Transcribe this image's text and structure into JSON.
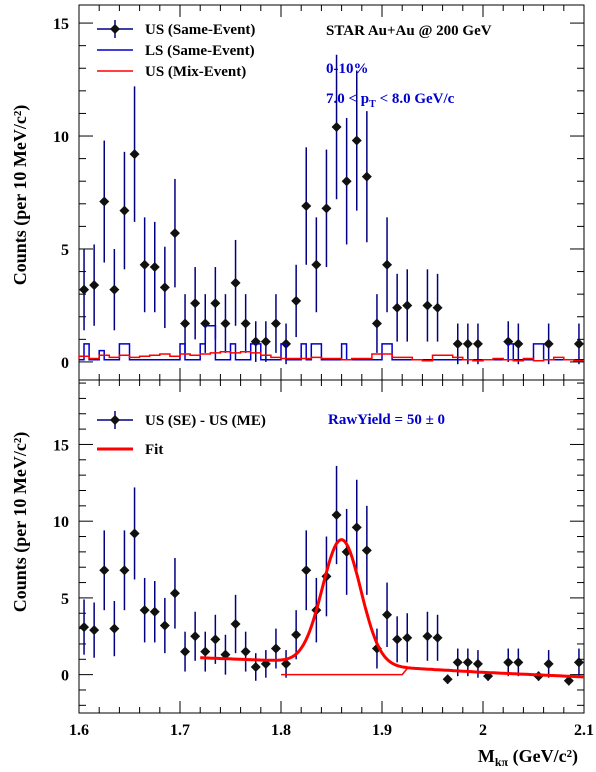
{
  "chart_data": [
    {
      "type": "scatter",
      "panel": "top",
      "ylabel": "Counts (per 10 MeV/c²)",
      "xlim": [
        1.6,
        2.1
      ],
      "ylim": [
        -0.8,
        15.8
      ],
      "yticks": [
        "0",
        "5",
        "10",
        "15"
      ],
      "annotations": {
        "system": "STAR Au+Au @ 200 GeV",
        "centrality": "0-10%",
        "pt": "7.0 < p",
        "pt_sub": "T",
        "pt_end": " < 8.0 GeV/c"
      },
      "legend": [
        {
          "label": "US (Same-Event)",
          "color": "#000080",
          "marker": "point"
        },
        {
          "label": "LS (Same-Event)",
          "color": "#0000cc",
          "marker": "line"
        },
        {
          "label": "US (Mix-Event)",
          "color": "#ff0000",
          "marker": "line"
        }
      ],
      "series": [
        {
          "name": "US (Same-Event)",
          "color": "#000080",
          "points": [
            [
              1.605,
              3.2,
              1.8
            ],
            [
              1.615,
              3.4,
              1.8
            ],
            [
              1.625,
              7.1,
              2.7
            ],
            [
              1.635,
              3.2,
              1.8
            ],
            [
              1.645,
              6.7,
              2.6
            ],
            [
              1.655,
              9.2,
              3.0
            ],
            [
              1.665,
              4.3,
              2.1
            ],
            [
              1.675,
              4.2,
              2.0
            ],
            [
              1.685,
              3.3,
              1.8
            ],
            [
              1.695,
              5.7,
              2.4
            ],
            [
              1.705,
              1.7,
              1.3
            ],
            [
              1.715,
              2.6,
              1.6
            ],
            [
              1.725,
              1.7,
              1.3
            ],
            [
              1.735,
              2.6,
              1.6
            ],
            [
              1.745,
              1.7,
              1.3
            ],
            [
              1.755,
              3.5,
              1.9
            ],
            [
              1.765,
              1.7,
              1.3
            ],
            [
              1.775,
              0.9,
              0.9
            ],
            [
              1.785,
              0.9,
              0.9
            ],
            [
              1.795,
              1.7,
              1.3
            ],
            [
              1.805,
              0.8,
              0.9
            ],
            [
              1.815,
              2.7,
              1.6
            ],
            [
              1.825,
              6.9,
              2.6
            ],
            [
              1.835,
              4.3,
              2.1
            ],
            [
              1.845,
              6.8,
              2.6
            ],
            [
              1.855,
              10.4,
              3.2
            ],
            [
              1.865,
              8.0,
              2.8
            ],
            [
              1.875,
              9.8,
              3.1
            ],
            [
              1.885,
              8.2,
              2.9
            ],
            [
              1.895,
              1.7,
              1.3
            ],
            [
              1.905,
              4.3,
              2.1
            ],
            [
              1.915,
              2.4,
              1.5
            ],
            [
              1.925,
              2.5,
              1.6
            ],
            [
              1.945,
              2.5,
              1.6
            ],
            [
              1.955,
              2.4,
              1.5
            ],
            [
              1.975,
              0.8,
              0.9
            ],
            [
              1.985,
              0.8,
              0.9
            ],
            [
              1.995,
              0.8,
              0.9
            ],
            [
              2.025,
              0.9,
              0.9
            ],
            [
              2.035,
              0.8,
              0.9
            ],
            [
              2.065,
              0.8,
              0.9
            ],
            [
              2.095,
              0.8,
              0.9
            ]
          ]
        },
        {
          "name": "LS (Same-Event)",
          "color": "#0000cc",
          "step_bins": [
            [
              1.6,
              1.605,
              0.1
            ],
            [
              1.605,
              1.61,
              0.8
            ],
            [
              1.61,
              1.62,
              0.1
            ],
            [
              1.62,
              1.625,
              0.5
            ],
            [
              1.625,
              1.64,
              0.1
            ],
            [
              1.64,
              1.645,
              0.8
            ],
            [
              1.645,
              1.65,
              0.8
            ],
            [
              1.65,
              1.7,
              0.1
            ],
            [
              1.7,
              1.705,
              0.8
            ],
            [
              1.705,
              1.71,
              0.1
            ],
            [
              1.71,
              1.72,
              0.1
            ],
            [
              1.72,
              1.725,
              0.8
            ],
            [
              1.725,
              1.73,
              1.6
            ],
            [
              1.73,
              1.735,
              1.6
            ],
            [
              1.735,
              1.75,
              0.1
            ],
            [
              1.75,
              1.755,
              0.8
            ],
            [
              1.755,
              1.77,
              0.1
            ],
            [
              1.77,
              1.775,
              0.8
            ],
            [
              1.775,
              1.78,
              0.8
            ],
            [
              1.78,
              1.8,
              0.1
            ],
            [
              1.8,
              1.805,
              0.8
            ],
            [
              1.805,
              1.82,
              0.1
            ],
            [
              1.82,
              1.825,
              0.8
            ],
            [
              1.825,
              1.83,
              0.1
            ],
            [
              1.83,
              1.835,
              0.8
            ],
            [
              1.835,
              1.84,
              0.8
            ],
            [
              1.84,
              1.86,
              0.1
            ],
            [
              1.86,
              1.865,
              0.8
            ],
            [
              1.865,
              1.9,
              0.1
            ],
            [
              1.9,
              1.905,
              0.8
            ],
            [
              1.905,
              1.91,
              0.8
            ],
            [
              1.91,
              2.025,
              0.1
            ],
            [
              2.025,
              2.03,
              0.8
            ],
            [
              2.03,
              2.05,
              0.1
            ],
            [
              2.05,
              2.055,
              0.8
            ],
            [
              2.055,
              2.06,
              0.8
            ],
            [
              2.06,
              2.1,
              0.1
            ]
          ]
        },
        {
          "name": "US (Mix-Event)",
          "color": "#ff0000",
          "step_bins": [
            [
              1.6,
              1.6,
              0.15
            ],
            [
              1.6,
              1.61,
              0.25
            ],
            [
              1.61,
              1.62,
              0.15
            ],
            [
              1.62,
              1.63,
              0.3
            ],
            [
              1.63,
              1.64,
              0.2
            ],
            [
              1.64,
              1.65,
              0.3
            ],
            [
              1.65,
              1.66,
              0.2
            ],
            [
              1.66,
              1.67,
              0.25
            ],
            [
              1.67,
              1.68,
              0.3
            ],
            [
              1.68,
              1.69,
              0.35
            ],
            [
              1.69,
              1.7,
              0.25
            ],
            [
              1.7,
              1.71,
              0.35
            ],
            [
              1.71,
              1.72,
              0.3
            ],
            [
              1.72,
              1.73,
              0.35
            ],
            [
              1.73,
              1.74,
              0.4
            ],
            [
              1.74,
              1.75,
              0.45
            ],
            [
              1.75,
              1.76,
              0.4
            ],
            [
              1.76,
              1.77,
              0.45
            ],
            [
              1.77,
              1.78,
              0.4
            ],
            [
              1.78,
              1.79,
              0.3
            ],
            [
              1.79,
              1.8,
              0.2
            ],
            [
              1.8,
              1.81,
              0.15
            ],
            [
              1.81,
              1.82,
              0.15
            ],
            [
              1.82,
              1.83,
              0.15
            ],
            [
              1.83,
              1.84,
              0.2
            ],
            [
              1.84,
              1.85,
              0.15
            ],
            [
              1.85,
              1.86,
              0.15
            ],
            [
              1.86,
              1.87,
              0.1
            ],
            [
              1.87,
              1.88,
              0.15
            ],
            [
              1.88,
              1.89,
              0.15
            ],
            [
              1.89,
              1.9,
              0.35
            ],
            [
              1.9,
              1.91,
              0.35
            ],
            [
              1.91,
              1.92,
              0.2
            ],
            [
              1.92,
              1.93,
              0.2
            ],
            [
              1.93,
              1.94,
              0.1
            ],
            [
              1.94,
              1.95,
              0.05
            ],
            [
              1.95,
              1.96,
              0.3
            ],
            [
              1.96,
              1.97,
              0.3
            ],
            [
              1.97,
              1.98,
              0.2
            ],
            [
              1.98,
              1.99,
              0.1
            ],
            [
              1.99,
              2.0,
              0.05
            ],
            [
              2.0,
              2.01,
              0.1
            ],
            [
              2.01,
              2.02,
              0.15
            ],
            [
              2.02,
              2.03,
              0.1
            ],
            [
              2.03,
              2.04,
              0.05
            ],
            [
              2.04,
              2.05,
              0.15
            ],
            [
              2.05,
              2.06,
              0.05
            ],
            [
              2.06,
              2.07,
              0.1
            ],
            [
              2.07,
              2.08,
              0.2
            ],
            [
              2.08,
              2.09,
              0.1
            ],
            [
              2.09,
              2.1,
              0.05
            ]
          ]
        }
      ]
    },
    {
      "type": "scatter",
      "panel": "bottom",
      "ylabel": "Counts (per 10 MeV/c²)",
      "xlabel": "M",
      "xlabel_sub": "kπ",
      "xlabel_end": " (GeV/c²)",
      "xlim": [
        1.6,
        2.1
      ],
      "ylim": [
        -2.5,
        19.2
      ],
      "xticks": [
        "1.6",
        "1.7",
        "1.8",
        "1.9",
        "2",
        "2.1"
      ],
      "yticks": [
        "0",
        "5",
        "10",
        "15"
      ],
      "annotations": {
        "rawyield": "RawYield = 50  ± 0"
      },
      "legend": [
        {
          "label": "US (SE) - US (ME)",
          "color": "#000080",
          "marker": "point"
        },
        {
          "label": "Fit",
          "color": "#ff0000",
          "marker": "line"
        }
      ],
      "series": [
        {
          "name": "US (SE) - US (ME)",
          "color": "#000080",
          "points": [
            [
              1.605,
              3.1,
              1.8
            ],
            [
              1.615,
              2.9,
              1.8
            ],
            [
              1.625,
              6.8,
              2.6
            ],
            [
              1.635,
              3.0,
              1.8
            ],
            [
              1.645,
              6.8,
              2.6
            ],
            [
              1.655,
              9.2,
              3.0
            ],
            [
              1.665,
              4.2,
              2.1
            ],
            [
              1.675,
              4.1,
              2.0
            ],
            [
              1.685,
              3.2,
              1.8
            ],
            [
              1.695,
              5.3,
              2.3
            ],
            [
              1.705,
              1.5,
              1.3
            ],
            [
              1.715,
              2.5,
              1.6
            ],
            [
              1.725,
              1.5,
              1.3
            ],
            [
              1.735,
              2.3,
              1.6
            ],
            [
              1.745,
              1.3,
              1.3
            ],
            [
              1.755,
              3.3,
              1.9
            ],
            [
              1.765,
              1.5,
              1.3
            ],
            [
              1.775,
              0.5,
              0.9
            ],
            [
              1.785,
              0.7,
              0.9
            ],
            [
              1.795,
              1.7,
              1.3
            ],
            [
              1.805,
              0.7,
              0.9
            ],
            [
              1.815,
              2.6,
              1.6
            ],
            [
              1.825,
              6.8,
              2.6
            ],
            [
              1.835,
              4.2,
              2.1
            ],
            [
              1.845,
              6.4,
              2.6
            ],
            [
              1.855,
              10.4,
              3.2
            ],
            [
              1.865,
              8.0,
              2.8
            ],
            [
              1.875,
              9.6,
              3.1
            ],
            [
              1.885,
              8.1,
              2.9
            ],
            [
              1.895,
              1.7,
              1.3
            ],
            [
              1.905,
              3.9,
              2.1
            ],
            [
              1.915,
              2.3,
              1.5
            ],
            [
              1.925,
              2.4,
              1.6
            ],
            [
              1.945,
              2.5,
              1.6
            ],
            [
              1.955,
              2.4,
              1.5
            ],
            [
              1.965,
              -0.3,
              0.3
            ],
            [
              1.975,
              0.8,
              0.9
            ],
            [
              1.985,
              0.8,
              0.9
            ],
            [
              1.995,
              0.7,
              0.9
            ],
            [
              2.005,
              -0.1,
              0.3
            ],
            [
              2.025,
              0.8,
              0.9
            ],
            [
              2.035,
              0.8,
              0.9
            ],
            [
              2.055,
              -0.1,
              0.3
            ],
            [
              2.065,
              0.7,
              0.9
            ],
            [
              2.085,
              -0.4,
              0.3
            ],
            [
              2.095,
              0.8,
              0.9
            ]
          ]
        },
        {
          "name": "Fit",
          "color": "#ff0000",
          "fit": {
            "x_range": [
              1.72,
              2.1
            ],
            "gauss_mean": 1.86,
            "gauss_sigma": 0.019,
            "gauss_amp": 8.1,
            "bkg": [
              [
                1.72,
                1.1
              ],
              [
                1.8,
                0.9
              ],
              [
                1.86,
                0.7
              ],
              [
                1.92,
                0.45
              ],
              [
                2.0,
                0.15
              ],
              [
                2.1,
                -0.15
              ]
            ],
            "flat_segment": [
              [
                1.8,
                0.0
              ],
              [
                1.92,
                0.0
              ],
              [
                1.925,
                0.4
              ]
            ]
          }
        }
      ]
    }
  ]
}
